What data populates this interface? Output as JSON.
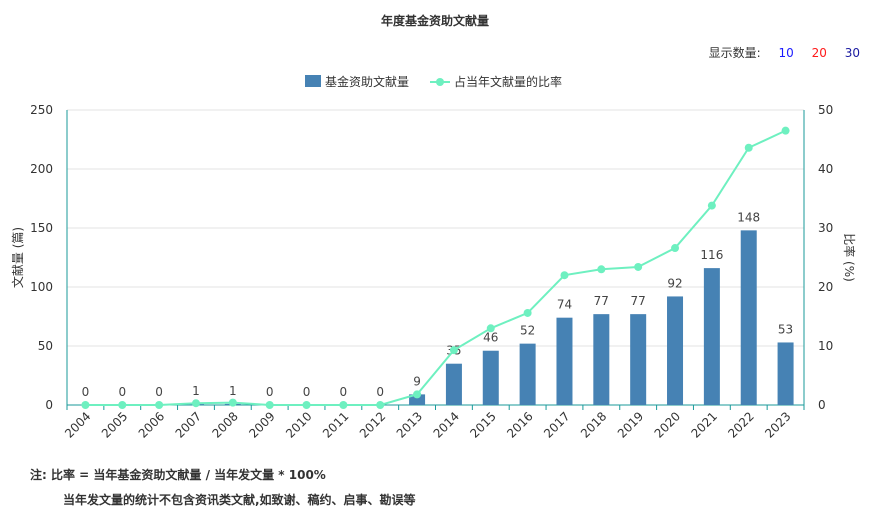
{
  "title": "年度基金资助文献量",
  "count_selector": {
    "label": "显示数量:",
    "options": [
      {
        "text": "10",
        "color": "#1a1aff"
      },
      {
        "text": "20",
        "color": "#ff1a1a"
      },
      {
        "text": "30",
        "color": "#1a1aa0"
      }
    ]
  },
  "notes": {
    "line1": "注:  比率 = 当年基金资助文献量 / 当年发文量 * 100%",
    "line2": "当年发文量的统计不包含资讯类文献,如致谢、稿约、启事、勘误等"
  },
  "colors": {
    "bar": "#4682b4",
    "line": "#6ef0c0",
    "axis": "#1a9a9a"
  },
  "chart_data": {
    "type": "bar",
    "categories": [
      "2004",
      "2005",
      "2006",
      "2007",
      "2008",
      "2009",
      "2010",
      "2011",
      "2012",
      "2013",
      "2014",
      "2015",
      "2016",
      "2017",
      "2018",
      "2019",
      "2020",
      "2021",
      "2022",
      "2023"
    ],
    "series": [
      {
        "name": "基金资助文献量",
        "type": "bar",
        "axis": "left",
        "values": [
          0,
          0,
          0,
          1,
          1,
          0,
          0,
          0,
          0,
          9,
          35,
          46,
          52,
          74,
          77,
          77,
          92,
          116,
          148,
          53
        ]
      },
      {
        "name": "占当年文献量的比率",
        "type": "line",
        "axis": "right",
        "values": [
          0,
          0,
          0,
          0.3,
          0.4,
          0,
          0,
          0,
          0,
          1.8,
          9.3,
          13,
          15.6,
          22,
          23,
          23.4,
          26.6,
          33.8,
          43.6,
          46.5
        ]
      }
    ],
    "ylabel": "文献量 (篇)",
    "y2label": "比率 (%)",
    "ylim": [
      0,
      250
    ],
    "y2lim": [
      0,
      50
    ],
    "yticks": [
      0,
      50,
      100,
      150,
      200,
      250
    ],
    "y2ticks": [
      0,
      10,
      20,
      30,
      40,
      50
    ],
    "legend": "top-center",
    "grid": true
  }
}
